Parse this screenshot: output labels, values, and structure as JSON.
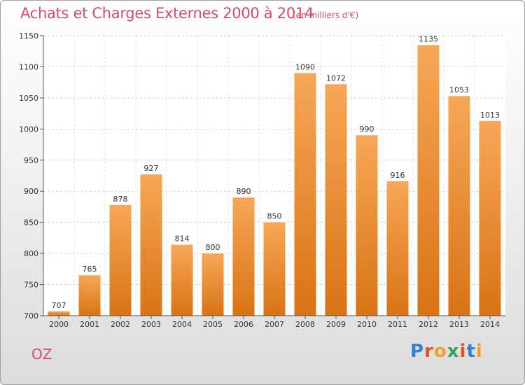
{
  "chart_data": {
    "type": "bar",
    "title": "Achats et Charges Externes 2000 à 2014",
    "subtitle": "(en milliers d'€)",
    "categories": [
      "2000",
      "2001",
      "2002",
      "2003",
      "2004",
      "2005",
      "2006",
      "2007",
      "2008",
      "2009",
      "2010",
      "2011",
      "2012",
      "2013",
      "2014"
    ],
    "values": [
      707,
      765,
      878,
      927,
      814,
      800,
      890,
      850,
      1090,
      1072,
      990,
      916,
      1135,
      1053,
      1013
    ],
    "yticks": [
      700,
      750,
      800,
      850,
      900,
      950,
      1000,
      1050,
      1100,
      1150
    ],
    "ylim": [
      700,
      1150
    ],
    "grid": true,
    "legend": "none",
    "bar_color_light": "#f7a757",
    "bar_color_dark": "#d97314"
  },
  "footer": {
    "commune": "OZ",
    "logo_letters": [
      "P",
      "r",
      "o",
      "x",
      "i",
      "t",
      "i"
    ],
    "logo_colors": [
      "#3a7fd1",
      "#e6501e",
      "#f0a020",
      "#2fa84f",
      "#e6501e",
      "#3a7fd1",
      "#f0a020"
    ]
  }
}
